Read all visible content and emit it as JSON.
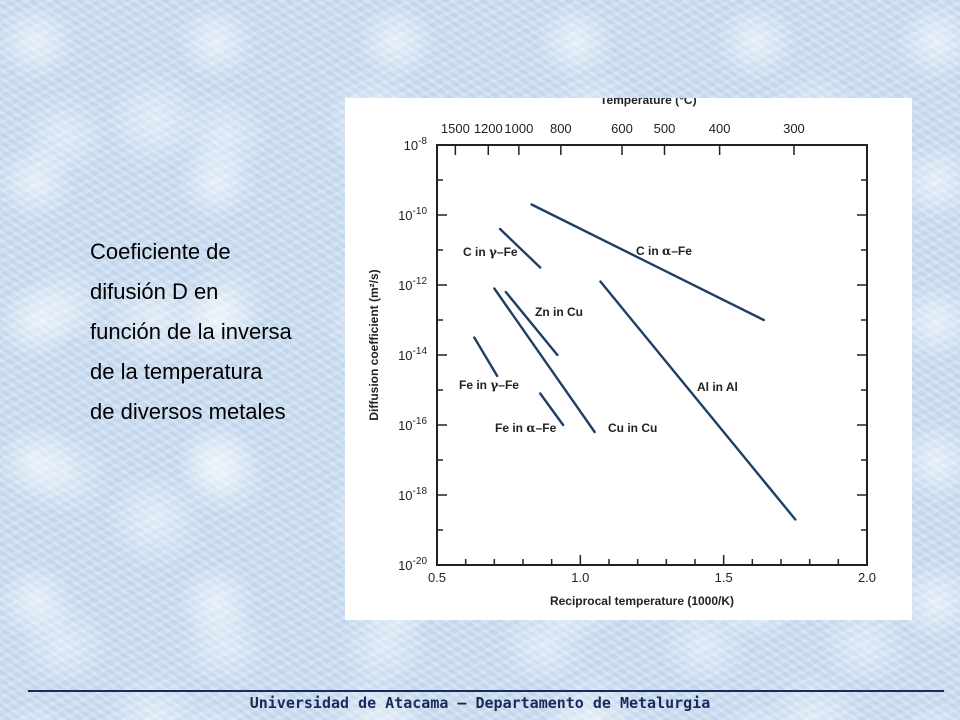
{
  "description": {
    "lines": [
      "Coeficiente de",
      "difusión D en",
      "función de la inversa",
      "de la temperatura",
      "de diversos metales"
    ]
  },
  "footer": {
    "text": "Universidad de Atacama – Departamento de Metalurgia"
  },
  "colors": {
    "line": "#1f3f63",
    "axis": "#222222",
    "footer": "#1b2a5c"
  },
  "chart_data": {
    "type": "line",
    "xlabel": "Reciprocal temperature (1000/K)",
    "ylabel": "Diffusion coefficient (m²/s)",
    "top_axis_label": "Temperature (°C)",
    "xlim": [
      0.5,
      2.0
    ],
    "ylim_log10": [
      -20,
      -8
    ],
    "x_ticks": [
      "0.5",
      "1.0",
      "1.5",
      "2.0"
    ],
    "x_tick_values": [
      0.5,
      1.0,
      1.5,
      2.0
    ],
    "y_ticks": [
      {
        "exp": -8,
        "label": "10",
        "sup": "-8"
      },
      {
        "exp": -10,
        "label": "10",
        "sup": "-10"
      },
      {
        "exp": -12,
        "label": "10",
        "sup": "-12"
      },
      {
        "exp": -14,
        "label": "10",
        "sup": "-14"
      },
      {
        "exp": -16,
        "label": "10",
        "sup": "-16"
      },
      {
        "exp": -18,
        "label": "10",
        "sup": "-18"
      },
      {
        "exp": -20,
        "label": "10",
        "sup": "-20"
      }
    ],
    "top_ticks": [
      "1500",
      "1200",
      "1000",
      "800",
      "600",
      "500",
      "400",
      "300"
    ],
    "top_tick_celsius": [
      1500,
      1200,
      1000,
      800,
      600,
      500,
      400,
      300
    ],
    "series": [
      {
        "name": "C in γ–Fe",
        "label_parts": [
          "C in ",
          "γ",
          "–Fe"
        ],
        "x": [
          0.72,
          0.86
        ],
        "y_log10": [
          -10.4,
          -11.5
        ]
      },
      {
        "name": "C in α–Fe",
        "label_parts": [
          "C in ",
          "α",
          "–Fe"
        ],
        "x": [
          0.83,
          1.64
        ],
        "y_log10": [
          -9.7,
          -13.0
        ]
      },
      {
        "name": "Zn in Cu",
        "label_parts": [
          "Zn in Cu"
        ],
        "x": [
          0.74,
          0.92
        ],
        "y_log10": [
          -12.2,
          -14.0
        ]
      },
      {
        "name": "Fe in γ–Fe",
        "label_parts": [
          "Fe in ",
          "γ",
          "–Fe"
        ],
        "x": [
          0.63,
          0.71
        ],
        "y_log10": [
          -13.5,
          -14.6
        ]
      },
      {
        "name": "Fe in α–Fe",
        "label_parts": [
          "Fe in ",
          "α",
          "–Fe"
        ],
        "x": [
          0.86,
          0.94
        ],
        "y_log10": [
          -15.1,
          -16.0
        ]
      },
      {
        "name": "Cu in Cu",
        "label_parts": [
          "Cu in Cu"
        ],
        "x": [
          0.7,
          1.05
        ],
        "y_log10": [
          -12.1,
          -16.2
        ]
      },
      {
        "name": "Al in Al",
        "label_parts": [
          "Al in Al"
        ],
        "x": [
          1.07,
          1.75
        ],
        "y_log10": [
          -11.9,
          -18.7
        ]
      }
    ]
  }
}
